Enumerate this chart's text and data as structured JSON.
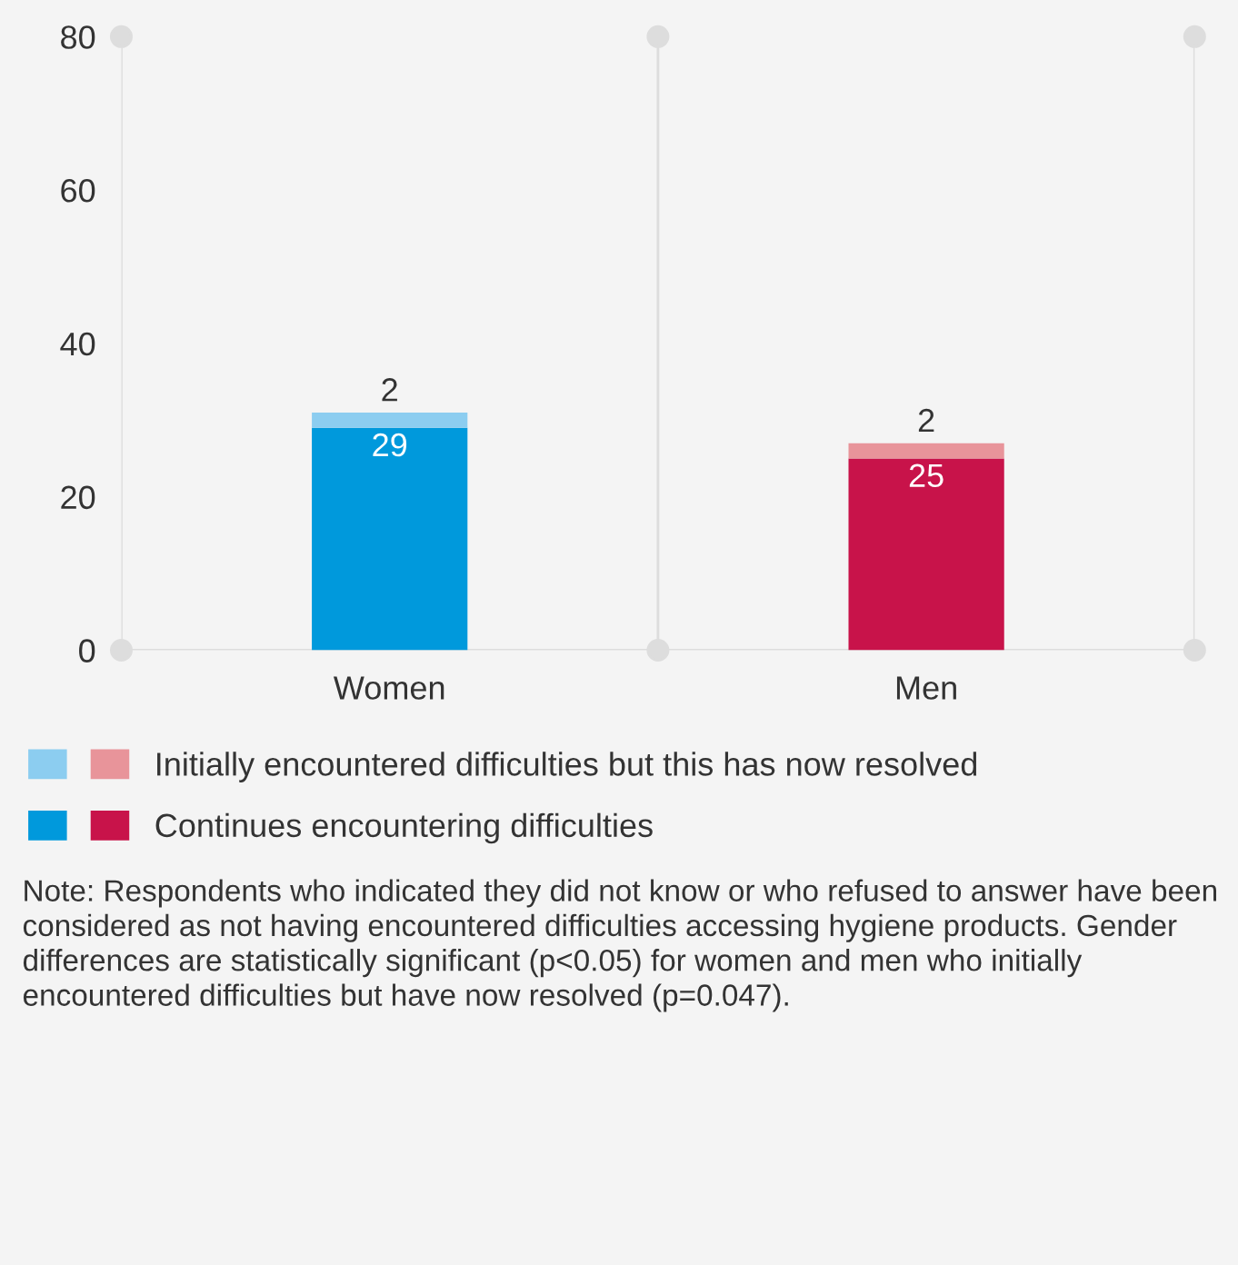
{
  "chart_data": {
    "type": "bar",
    "stacked": true,
    "categories": [
      "Women",
      "Men"
    ],
    "series": [
      {
        "name": "Continues encountering difficulties",
        "colors": [
          "#0099dc",
          "#c8134a"
        ],
        "values": [
          29,
          25
        ]
      },
      {
        "name": "Initially encountered difficulties but this has now resolved",
        "colors": [
          "#8ccdf0",
          "#e8949a"
        ],
        "values": [
          2,
          2
        ]
      }
    ],
    "ylim": [
      0,
      80
    ],
    "yticks": [
      0,
      20,
      40,
      60,
      80
    ],
    "grid": "x",
    "legend": "bottom",
    "data_labels": true,
    "annotations": [
      "Note: Respondents who indicated they did not know or who refused to answer have been considered as not having encountered difficulties accessing hygiene products. Gender differences are statistically significant (p<0.05) for women and men who initially encountered difficulties but have now resolved (p=0.047)."
    ]
  }
}
